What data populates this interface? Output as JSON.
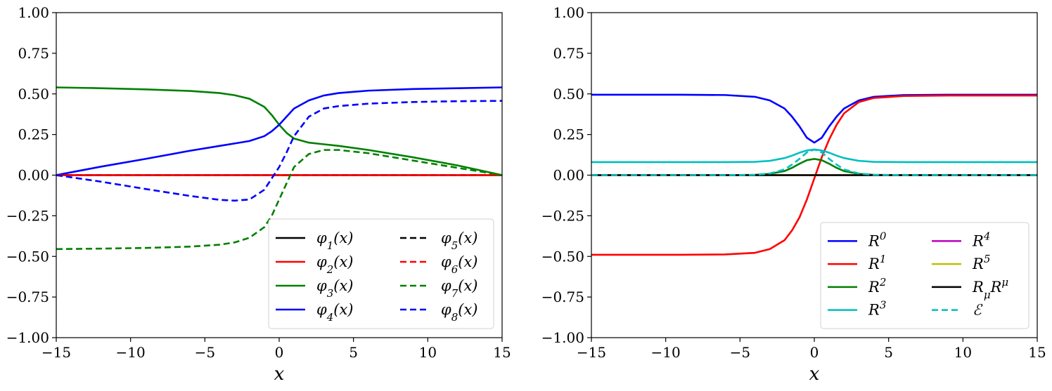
{
  "chart_data": [
    {
      "type": "line",
      "title": "",
      "xlabel": "x",
      "ylabel": "",
      "xlim": [
        -15,
        15
      ],
      "ylim": [
        -1,
        1
      ],
      "xticks": [
        -15,
        -10,
        -5,
        0,
        5,
        10,
        15
      ],
      "xtick_labels": [
        "−15",
        "−10",
        "−5",
        "0",
        "5",
        "10",
        "15"
      ],
      "yticks": [
        -1,
        -0.75,
        -0.5,
        -0.25,
        0,
        0.25,
        0.5,
        0.75,
        1
      ],
      "ytick_labels": [
        "−1.00",
        "−0.75",
        "−0.50",
        "−0.25",
        "0.00",
        "0.25",
        "0.50",
        "0.75",
        "1.00"
      ],
      "legend_position": "lower-right",
      "legend_columns": 2,
      "x": [
        -15,
        -12,
        -9,
        -6,
        -4,
        -3,
        -2,
        -1,
        -0.5,
        0,
        0.5,
        1,
        2,
        3,
        4,
        6,
        9,
        12,
        15
      ],
      "series": [
        {
          "name": "φ1(x)",
          "color": "#000000",
          "dash": false,
          "values": [
            0,
            0,
            0,
            0,
            0,
            0,
            0,
            0,
            0,
            0,
            0,
            0,
            0,
            0,
            0,
            0,
            0,
            0,
            0
          ]
        },
        {
          "name": "φ2(x)",
          "color": "#ff0000",
          "dash": false,
          "values": [
            0,
            0,
            0,
            0,
            0,
            0,
            0,
            0,
            0,
            0,
            0,
            0,
            0,
            0,
            0,
            0,
            0,
            0,
            0
          ]
        },
        {
          "name": "φ3(x)",
          "color": "#008000",
          "dash": false,
          "values": [
            0.54,
            0.535,
            0.528,
            0.518,
            0.505,
            0.492,
            0.47,
            0.42,
            0.37,
            0.31,
            0.26,
            0.225,
            0.2,
            0.19,
            0.18,
            0.155,
            0.11,
            0.06,
            0.0
          ]
        },
        {
          "name": "φ4(x)",
          "color": "#0000ff",
          "dash": false,
          "values": [
            0.0,
            0.052,
            0.1,
            0.15,
            0.18,
            0.195,
            0.21,
            0.24,
            0.27,
            0.31,
            0.36,
            0.41,
            0.46,
            0.49,
            0.505,
            0.52,
            0.53,
            0.535,
            0.54
          ]
        },
        {
          "name": "φ5(x)",
          "color": "#000000",
          "dash": true,
          "values": [
            0,
            0,
            0,
            0,
            0,
            0,
            0,
            0,
            0,
            0,
            0,
            0,
            0,
            0,
            0,
            0,
            0,
            0,
            0
          ]
        },
        {
          "name": "φ6(x)",
          "color": "#ff0000",
          "dash": true,
          "values": [
            0,
            0,
            0,
            0,
            0,
            0,
            0,
            0,
            0,
            0,
            0,
            0,
            0,
            0,
            0,
            0,
            0,
            0,
            0
          ]
        },
        {
          "name": "φ7(x)",
          "color": "#008000",
          "dash": true,
          "values": [
            -0.455,
            -0.452,
            -0.448,
            -0.44,
            -0.428,
            -0.414,
            -0.385,
            -0.32,
            -0.25,
            -0.15,
            -0.05,
            0.05,
            0.13,
            0.155,
            0.155,
            0.135,
            0.09,
            0.045,
            0.0
          ]
        },
        {
          "name": "φ8(x)",
          "color": "#0000ff",
          "dash": true,
          "values": [
            0.0,
            -0.04,
            -0.085,
            -0.128,
            -0.152,
            -0.157,
            -0.15,
            -0.09,
            -0.02,
            0.05,
            0.14,
            0.24,
            0.36,
            0.41,
            0.425,
            0.44,
            0.45,
            0.455,
            0.457
          ]
        }
      ]
    },
    {
      "type": "line",
      "title": "",
      "xlabel": "x",
      "ylabel": "",
      "xlim": [
        -15,
        15
      ],
      "ylim": [
        -1,
        1
      ],
      "xticks": [
        -15,
        -10,
        -5,
        0,
        5,
        10,
        15
      ],
      "xtick_labels": [
        "−15",
        "−10",
        "−5",
        "0",
        "5",
        "10",
        "15"
      ],
      "yticks": [
        -1,
        -0.75,
        -0.5,
        -0.25,
        0,
        0.25,
        0.5,
        0.75,
        1
      ],
      "ytick_labels": [
        "−1.00",
        "−0.75",
        "−0.50",
        "−0.25",
        "0.00",
        "0.25",
        "0.50",
        "0.75",
        "1.00"
      ],
      "legend_position": "lower-right",
      "legend_columns": 2,
      "x": [
        -15,
        -12,
        -9,
        -6,
        -4,
        -3,
        -2,
        -1.5,
        -1,
        -0.5,
        0,
        0.5,
        1,
        1.5,
        2,
        3,
        4,
        6,
        9,
        12,
        15
      ],
      "series": [
        {
          "name": "R^0",
          "color": "#0000ff",
          "dash": false,
          "values": [
            0.495,
            0.495,
            0.495,
            0.493,
            0.482,
            0.46,
            0.41,
            0.36,
            0.3,
            0.23,
            0.2,
            0.23,
            0.3,
            0.36,
            0.41,
            0.46,
            0.482,
            0.493,
            0.495,
            0.495,
            0.495
          ]
        },
        {
          "name": "R^1",
          "color": "#ff0000",
          "dash": false,
          "values": [
            -0.49,
            -0.49,
            -0.49,
            -0.488,
            -0.478,
            -0.455,
            -0.4,
            -0.34,
            -0.26,
            -0.15,
            -0.02,
            0.11,
            0.22,
            0.31,
            0.38,
            0.45,
            0.475,
            0.487,
            0.49,
            0.49,
            0.49
          ]
        },
        {
          "name": "R^2",
          "color": "#008000",
          "dash": false,
          "values": [
            0,
            0,
            0,
            0,
            0.002,
            0.008,
            0.025,
            0.045,
            0.07,
            0.092,
            0.1,
            0.092,
            0.07,
            0.045,
            0.025,
            0.008,
            0.002,
            0,
            0,
            0,
            0
          ]
        },
        {
          "name": "R^3",
          "color": "#00bfbf",
          "dash": false,
          "values": [
            0.08,
            0.08,
            0.08,
            0.08,
            0.082,
            0.088,
            0.105,
            0.12,
            0.138,
            0.152,
            0.158,
            0.152,
            0.138,
            0.12,
            0.105,
            0.088,
            0.082,
            0.08,
            0.08,
            0.08,
            0.08
          ]
        },
        {
          "name": "R^4",
          "color": "#bf00bf",
          "dash": false,
          "values": [
            0,
            0,
            0,
            0,
            0,
            0,
            0,
            0,
            0,
            0,
            0,
            0,
            0,
            0,
            0,
            0,
            0,
            0,
            0,
            0,
            0
          ]
        },
        {
          "name": "R^5",
          "color": "#bfbf00",
          "dash": false,
          "values": [
            0,
            0,
            0,
            0,
            0,
            0,
            0,
            0,
            0,
            0,
            0,
            0,
            0,
            0,
            0,
            0,
            0,
            0,
            0,
            0,
            0
          ]
        },
        {
          "name": "R_μR^μ",
          "color": "#000000",
          "dash": false,
          "values": [
            0,
            0,
            0,
            0,
            0,
            0,
            0,
            0,
            0,
            0,
            0,
            0,
            0,
            0,
            0,
            0,
            0,
            0,
            0,
            0,
            0
          ]
        },
        {
          "name": "ℰ",
          "color": "#00bfbf",
          "dash": true,
          "values": [
            0,
            0,
            0,
            0,
            0.002,
            0.01,
            0.035,
            0.065,
            0.1,
            0.14,
            0.158,
            0.14,
            0.1,
            0.065,
            0.035,
            0.01,
            0.002,
            0,
            0,
            0,
            0
          ]
        }
      ]
    }
  ]
}
